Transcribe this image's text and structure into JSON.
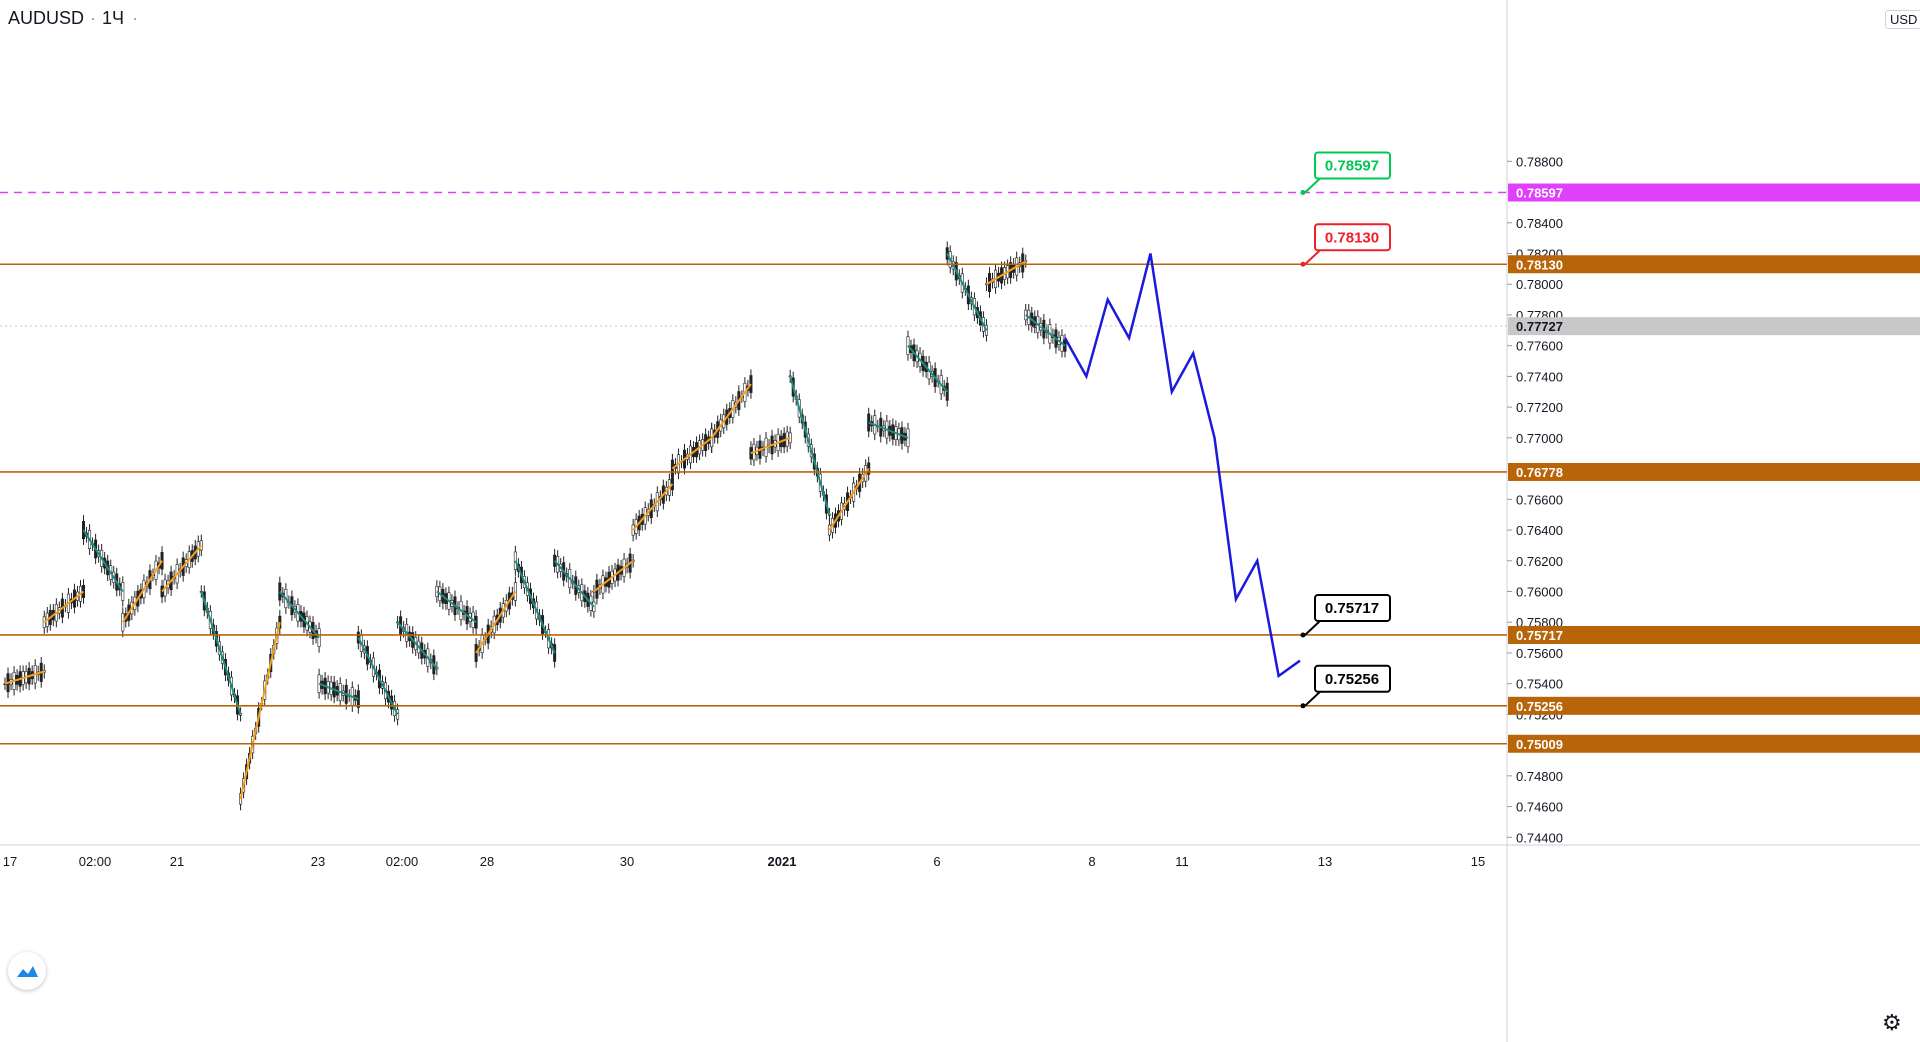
{
  "header": {
    "symbol": "AUDUSD",
    "interval": "1Ч"
  },
  "currency_badge": "USD",
  "chart_data": {
    "type": "candlestick",
    "symbol": "AUDUSD",
    "interval": "1Ч",
    "ylim": [
      0.7435,
      0.7985
    ],
    "y_ticks": [
      "0.74400",
      "0.74600",
      "0.74800",
      "0.75200",
      "0.75400",
      "0.75600",
      "0.75800",
      "0.76000",
      "0.76200",
      "0.76400",
      "0.76600",
      "0.77000",
      "0.77200",
      "0.77400",
      "0.77600",
      "0.77800",
      "0.78000",
      "0.78200",
      "0.78400",
      "0.78800"
    ],
    "x_ticks": [
      {
        "label": "17",
        "bold": false
      },
      {
        "label": "02:00",
        "bold": false
      },
      {
        "label": "21",
        "bold": false
      },
      {
        "label": "23",
        "bold": false
      },
      {
        "label": "02:00",
        "bold": false
      },
      {
        "label": "28",
        "bold": false
      },
      {
        "label": "30",
        "bold": false
      },
      {
        "label": "2021",
        "bold": true
      },
      {
        "label": "6",
        "bold": false
      },
      {
        "label": "8",
        "bold": false
      },
      {
        "label": "11",
        "bold": false
      },
      {
        "label": "13",
        "bold": false
      },
      {
        "label": "15",
        "bold": false
      }
    ],
    "levels": [
      {
        "value": 0.78597,
        "label": "0.78597",
        "color": "#e040fb",
        "style": "dashed"
      },
      {
        "value": 0.7813,
        "label": "0.78130",
        "color": "#b8650a",
        "style": "solid"
      },
      {
        "value": 0.77727,
        "label": "0.77727",
        "color": "#c8c8c8",
        "style": "dotted"
      },
      {
        "value": 0.76778,
        "label": "0.76778",
        "color": "#b8650a",
        "style": "solid"
      },
      {
        "value": 0.75717,
        "label": "0.75717",
        "color": "#b8650a",
        "style": "solid"
      },
      {
        "value": 0.75256,
        "label": "0.75256",
        "color": "#b8650a",
        "style": "solid"
      },
      {
        "value": 0.75009,
        "label": "0.75009",
        "color": "#b8650a",
        "style": "solid"
      }
    ],
    "callouts": [
      {
        "value": 0.78597,
        "label": "0.78597",
        "border": "#00c853",
        "text": "#00c853"
      },
      {
        "value": 0.7813,
        "label": "0.78130",
        "border": "#f0202a",
        "text": "#f0202a"
      },
      {
        "value": 0.75717,
        "label": "0.75717",
        "border": "#000000",
        "text": "#000000"
      },
      {
        "value": 0.75256,
        "label": "0.75256",
        "border": "#000000",
        "text": "#000000"
      }
    ],
    "supply_zones_color": "#f00000",
    "demand_zones_color": "#2e7d1e",
    "zigzag_up_color": "#f7a01e",
    "zigzag_down_color": "#1f8c84",
    "projection_color": "#1a1adf",
    "zigzag": [
      [
        0.754,
        0.7548
      ],
      [
        0.758,
        0.76
      ],
      [
        0.764,
        0.76
      ],
      [
        0.758,
        0.762
      ],
      [
        0.76,
        0.763
      ],
      [
        0.76,
        0.752
      ],
      [
        0.7465,
        0.758
      ],
      [
        0.76,
        0.757
      ],
      [
        0.754,
        0.753
      ],
      [
        0.757,
        0.752
      ],
      [
        0.758,
        0.755
      ],
      [
        0.76,
        0.758
      ],
      [
        0.756,
        0.76
      ],
      [
        0.762,
        0.756
      ],
      [
        0.762,
        0.759
      ],
      [
        0.76,
        0.762
      ],
      [
        0.764,
        0.767
      ],
      [
        0.768,
        0.77
      ],
      [
        0.77,
        0.7735
      ],
      [
        0.769,
        0.77
      ],
      [
        0.774,
        0.765
      ],
      [
        0.764,
        0.768
      ],
      [
        0.771,
        0.77
      ],
      [
        0.776,
        0.773
      ],
      [
        0.782,
        0.777
      ],
      [
        0.78,
        0.7815
      ],
      [
        0.778,
        0.776
      ]
    ],
    "projection": [
      0.7765,
      0.774,
      0.779,
      0.7765,
      0.782,
      0.773,
      0.7755,
      0.77,
      0.7595,
      0.762,
      0.7545,
      0.7555
    ]
  }
}
